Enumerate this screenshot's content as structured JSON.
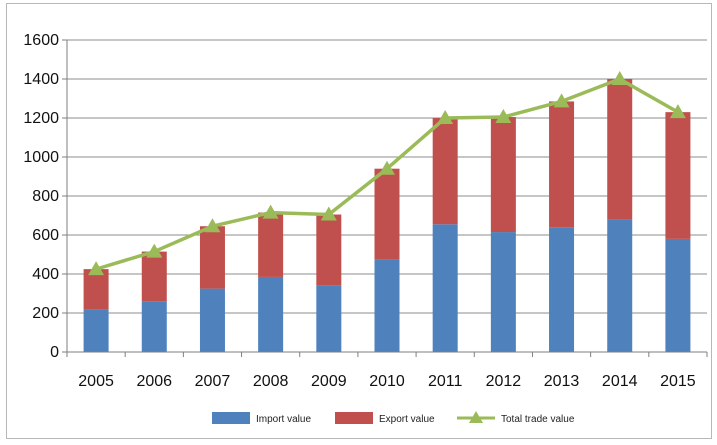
{
  "chart_data": {
    "type": "bar",
    "stacked": true,
    "categories": [
      "2005",
      "2006",
      "2007",
      "2008",
      "2009",
      "2010",
      "2011",
      "2012",
      "2013",
      "2014",
      "2015"
    ],
    "series": [
      {
        "name": "Import value",
        "type": "bar",
        "color": "#4f81bd",
        "values": [
          220,
          260,
          325,
          385,
          340,
          475,
          655,
          615,
          640,
          680,
          580
        ]
      },
      {
        "name": "Export value",
        "type": "bar",
        "color": "#c0504d",
        "values": [
          205,
          255,
          320,
          330,
          365,
          465,
          545,
          590,
          645,
          720,
          650
        ]
      },
      {
        "name": "Total trade value",
        "type": "line",
        "color": "#9bbb59",
        "values": [
          425,
          515,
          645,
          715,
          705,
          940,
          1200,
          1205,
          1285,
          1400,
          1230
        ]
      }
    ],
    "yticks": [
      "0",
      "200",
      "400",
      "600",
      "800",
      "1000",
      "1200",
      "1400",
      "1600"
    ],
    "ylim": [
      0,
      1600
    ],
    "grid": true,
    "legend": "bottom"
  }
}
